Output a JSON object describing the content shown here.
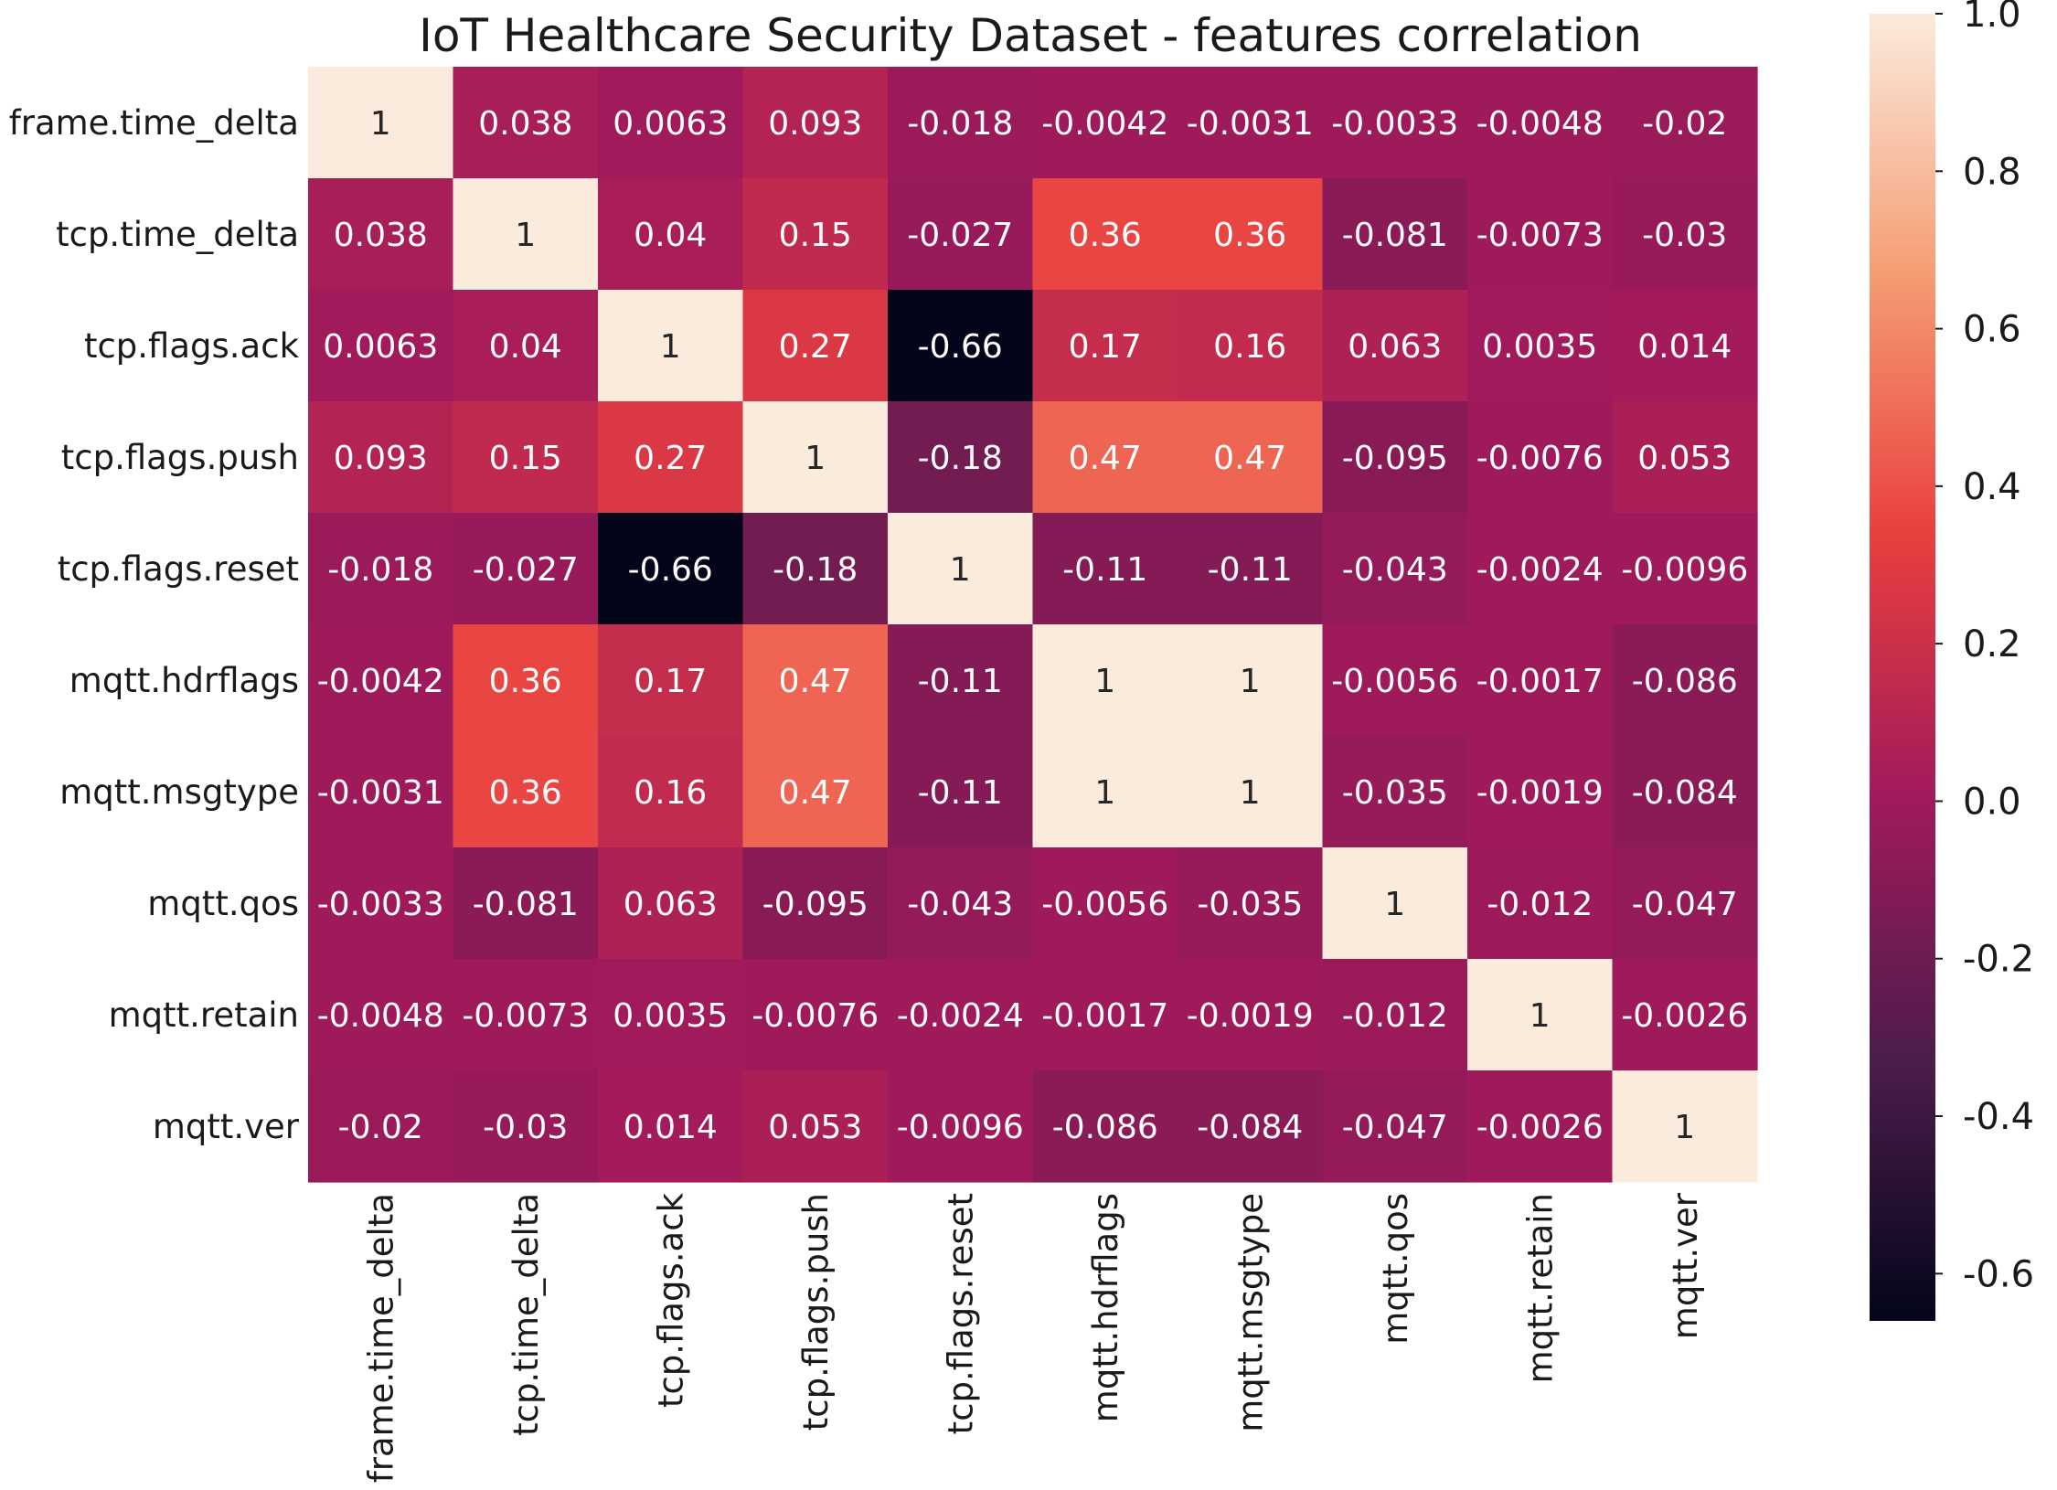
{
  "chart_data": {
    "type": "heatmap",
    "title": "IoT Healthcare Security Dataset - features correlation",
    "xlabel": "",
    "ylabel": "",
    "row_labels": [
      "frame.time_delta",
      "tcp.time_delta",
      "tcp.flags.ack",
      "tcp.flags.push",
      "tcp.flags.reset",
      "mqtt.hdrflags",
      "mqtt.msgtype",
      "mqtt.qos",
      "mqtt.retain",
      "mqtt.ver"
    ],
    "col_labels": [
      "frame.time_delta",
      "tcp.time_delta",
      "tcp.flags.ack",
      "tcp.flags.push",
      "tcp.flags.reset",
      "mqtt.hdrflags",
      "mqtt.msgtype",
      "mqtt.qos",
      "mqtt.retain",
      "mqtt.ver"
    ],
    "values": [
      [
        1,
        0.038,
        0.0063,
        0.093,
        -0.018,
        -0.0042,
        -0.0031,
        -0.0033,
        -0.0048,
        -0.02
      ],
      [
        0.038,
        1,
        0.04,
        0.15,
        -0.027,
        0.36,
        0.36,
        -0.081,
        -0.0073,
        -0.03
      ],
      [
        0.0063,
        0.04,
        1,
        0.27,
        -0.66,
        0.17,
        0.16,
        0.063,
        0.0035,
        0.014
      ],
      [
        0.093,
        0.15,
        0.27,
        1,
        -0.18,
        0.47,
        0.47,
        -0.095,
        -0.0076,
        0.053
      ],
      [
        -0.018,
        -0.027,
        -0.66,
        -0.18,
        1,
        -0.11,
        -0.11,
        -0.043,
        -0.0024,
        -0.0096
      ],
      [
        -0.0042,
        0.36,
        0.17,
        0.47,
        -0.11,
        1,
        1,
        -0.0056,
        -0.0017,
        -0.086
      ],
      [
        -0.0031,
        0.36,
        0.16,
        0.47,
        -0.11,
        1,
        1,
        -0.035,
        -0.0019,
        -0.084
      ],
      [
        -0.0033,
        -0.081,
        0.063,
        -0.095,
        -0.043,
        -0.0056,
        -0.035,
        1,
        -0.012,
        -0.047
      ],
      [
        -0.0048,
        -0.0073,
        0.0035,
        -0.0076,
        -0.0024,
        -0.0017,
        -0.0019,
        -0.012,
        1,
        -0.0026
      ],
      [
        -0.02,
        -0.03,
        0.014,
        0.053,
        -0.0096,
        -0.086,
        -0.084,
        -0.047,
        -0.0026,
        1
      ]
    ],
    "annotations": [
      [
        "1",
        "0.038",
        "0.0063",
        "0.093",
        "-0.018",
        "-0.0042",
        "-0.0031",
        "-0.0033",
        "-0.0048",
        "-0.02"
      ],
      [
        "0.038",
        "1",
        "0.04",
        "0.15",
        "-0.027",
        "0.36",
        "0.36",
        "-0.081",
        "-0.0073",
        "-0.03"
      ],
      [
        "0.0063",
        "0.04",
        "1",
        "0.27",
        "-0.66",
        "0.17",
        "0.16",
        "0.063",
        "0.0035",
        "0.014"
      ],
      [
        "0.093",
        "0.15",
        "0.27",
        "1",
        "-0.18",
        "0.47",
        "0.47",
        "-0.095",
        "-0.0076",
        "0.053"
      ],
      [
        "-0.018",
        "-0.027",
        "-0.66",
        "-0.18",
        "1",
        "-0.11",
        "-0.11",
        "-0.043",
        "-0.0024",
        "-0.0096"
      ],
      [
        "-0.0042",
        "0.36",
        "0.17",
        "0.47",
        "-0.11",
        "1",
        "1",
        "-0.0056",
        "-0.0017",
        "-0.086"
      ],
      [
        "-0.0031",
        "0.36",
        "0.16",
        "0.47",
        "-0.11",
        "1",
        "1",
        "-0.035",
        "-0.0019",
        "-0.084"
      ],
      [
        "-0.0033",
        "-0.081",
        "0.063",
        "-0.095",
        "-0.043",
        "-0.0056",
        "-0.035",
        "1",
        "-0.012",
        "-0.047"
      ],
      [
        "-0.0048",
        "-0.0073",
        "0.0035",
        "-0.0076",
        "-0.0024",
        "-0.0017",
        "-0.0019",
        "-0.012",
        "1",
        "-0.0026"
      ],
      [
        "-0.02",
        "-0.03",
        "0.014",
        "0.053",
        "-0.0096",
        "-0.086",
        "-0.084",
        "-0.047",
        "-0.0026",
        "1"
      ]
    ],
    "colorbar": {
      "vmin": -0.66,
      "vmax": 1.0,
      "ticks": [
        1.0,
        0.8,
        0.6,
        0.4,
        0.2,
        0.0,
        -0.2,
        -0.4,
        -0.6
      ],
      "tick_labels": [
        "1.0",
        "0.8",
        "0.6",
        "0.4",
        "0.2",
        "0.0",
        "-0.2",
        "-0.4",
        "-0.6"
      ],
      "position": "right"
    },
    "colormap": "rocket",
    "colormap_stops": [
      "#03051a",
      "#4c1d4b",
      "#a11a5b",
      "#e83f3f",
      "#f69c73",
      "#faebdd"
    ],
    "grid": false
  }
}
